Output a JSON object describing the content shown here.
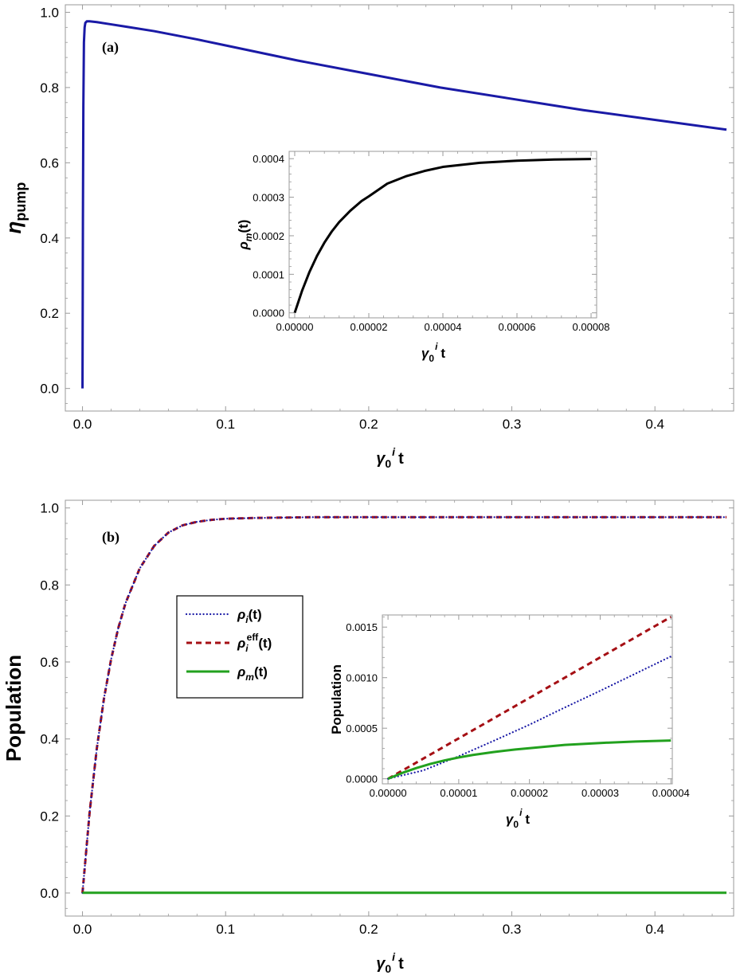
{
  "chart_data": [
    {
      "id": "main-a",
      "type": "line",
      "panel_label": "(a)",
      "xlabel": "γ₀ⁱ t",
      "ylabel": "η_pump",
      "xlim": [
        -0.012,
        0.455
      ],
      "ylim": [
        -0.06,
        1.02
      ],
      "xticks": [
        0.0,
        0.1,
        0.2,
        0.3,
        0.4
      ],
      "xtick_labels": [
        "0.0",
        "0.1",
        "0.2",
        "0.3",
        "0.4"
      ],
      "yticks": [
        0.0,
        0.2,
        0.4,
        0.6,
        0.8,
        1.0
      ],
      "ytick_labels": [
        "0.0",
        "0.2",
        "0.4",
        "0.6",
        "0.8",
        "1.0"
      ],
      "series": [
        {
          "name": "eta_pump",
          "color": "#1a1aa6",
          "style": "solid",
          "x": [
            0.0,
            0.0003,
            0.0006,
            0.001,
            0.0015,
            0.002,
            0.003,
            0.005,
            0.01,
            0.02,
            0.03,
            0.05,
            0.08,
            0.1,
            0.15,
            0.2,
            0.25,
            0.3,
            0.35,
            0.4,
            0.45
          ],
          "y": [
            0.0,
            0.45,
            0.75,
            0.92,
            0.96,
            0.972,
            0.976,
            0.976,
            0.974,
            0.968,
            0.962,
            0.95,
            0.928,
            0.912,
            0.872,
            0.836,
            0.8,
            0.77,
            0.74,
            0.714,
            0.688
          ]
        }
      ]
    },
    {
      "id": "inset-a",
      "type": "line",
      "xlabel": "γ₀ⁱ t",
      "ylabel": "ρm(t)",
      "xlim": [
        -1.5e-06,
        8.15e-05
      ],
      "ylim": [
        -1.3e-05,
        0.000419
      ],
      "xticks": [
        0.0,
        2e-05,
        4e-05,
        6e-05,
        8e-05
      ],
      "xtick_labels": [
        "0.00000",
        "0.00002",
        "0.00004",
        "0.00006",
        "0.00008"
      ],
      "yticks": [
        0.0,
        0.0001,
        0.0002,
        0.0003,
        0.0004
      ],
      "ytick_labels": [
        "0.0000",
        "0.0001",
        "0.0002",
        "0.0003",
        "0.0004"
      ],
      "series": [
        {
          "name": "rho_m",
          "color": "#000000",
          "style": "solid",
          "x": [
            0.0,
            2e-06,
            4e-06,
            6e-06,
            8e-06,
            1e-05,
            1.2e-05,
            1.5e-05,
            1.8e-05,
            2e-05,
            2.5e-05,
            3e-05,
            3.5e-05,
            4e-05,
            5e-05,
            6e-05,
            7e-05,
            8e-05
          ],
          "y": [
            0.0,
            5.77e-05,
            0.0001064,
            0.0001474,
            0.0001819,
            0.000211,
            0.0002355,
            0.0002649,
            0.0002897,
            0.0003022,
            0.0003353,
            0.0003542,
            0.0003681,
            0.0003786,
            0.0003892,
            0.0003948,
            0.0003978,
            0.0003992
          ]
        }
      ]
    },
    {
      "id": "main-b",
      "type": "line",
      "panel_label": "(b)",
      "xlabel": "γ₀ⁱ t",
      "ylabel": "Population",
      "xlim": [
        -0.012,
        0.455
      ],
      "ylim": [
        -0.06,
        1.02
      ],
      "xticks": [
        0.0,
        0.1,
        0.2,
        0.3,
        0.4
      ],
      "xtick_labels": [
        "0.0",
        "0.1",
        "0.2",
        "0.3",
        "0.4"
      ],
      "yticks": [
        0.0,
        0.2,
        0.4,
        0.6,
        0.8,
        1.0
      ],
      "ytick_labels": [
        "0.0",
        "0.2",
        "0.4",
        "0.6",
        "0.8",
        "1.0"
      ],
      "legend": {
        "position": "center-left",
        "entries": [
          {
            "label_base": "ρ",
            "label_sub": "i",
            "label_sup": "",
            "label_tail": "(t)",
            "color": "#1a1aa6",
            "style": "dotted"
          },
          {
            "label_base": "ρ",
            "label_sub": "i",
            "label_sup": "eff",
            "label_tail": "(t)",
            "color": "#a50f14",
            "style": "dashed"
          },
          {
            "label_base": "ρ",
            "label_sub": "m",
            "label_sup": "",
            "label_tail": "(t)",
            "color": "#22a11e",
            "style": "solid"
          }
        ]
      },
      "series": [
        {
          "name": "rho_i_eff",
          "color": "#a50f14",
          "style": "dashed",
          "x": [
            0.0,
            0.005,
            0.01,
            0.015,
            0.02,
            0.025,
            0.03,
            0.04,
            0.05,
            0.06,
            0.07,
            0.08,
            0.09,
            0.1,
            0.12,
            0.14,
            0.16,
            0.2,
            0.25,
            0.3,
            0.35,
            0.4,
            0.45
          ],
          "y": [
            0.0,
            0.21,
            0.375,
            0.505,
            0.607,
            0.688,
            0.752,
            0.843,
            0.901,
            0.936,
            0.955,
            0.964,
            0.969,
            0.972,
            0.974,
            0.975,
            0.976,
            0.976,
            0.976,
            0.976,
            0.976,
            0.976,
            0.976
          ]
        },
        {
          "name": "rho_i",
          "color": "#1a1aa6",
          "style": "dotted",
          "x": [
            0.0,
            0.005,
            0.01,
            0.015,
            0.02,
            0.025,
            0.03,
            0.04,
            0.05,
            0.06,
            0.07,
            0.08,
            0.09,
            0.1,
            0.12,
            0.14,
            0.16,
            0.2,
            0.25,
            0.3,
            0.35,
            0.4,
            0.45
          ],
          "y": [
            0.0,
            0.21,
            0.375,
            0.505,
            0.607,
            0.688,
            0.752,
            0.843,
            0.901,
            0.936,
            0.955,
            0.964,
            0.969,
            0.972,
            0.974,
            0.975,
            0.976,
            0.976,
            0.976,
            0.976,
            0.976,
            0.976,
            0.976
          ]
        },
        {
          "name": "rho_m",
          "color": "#22a11e",
          "style": "solid",
          "x": [
            0.0,
            0.45
          ],
          "y": [
            0.0004,
            0.0004
          ]
        }
      ]
    },
    {
      "id": "inset-b",
      "type": "line",
      "xlabel": "γ₀ⁱ t",
      "ylabel": "Population",
      "xlim": [
        -8e-07,
        4.02e-05
      ],
      "ylim": [
        -5e-05,
        0.00162
      ],
      "xticks": [
        0.0,
        1e-05,
        2e-05,
        3e-05,
        4e-05
      ],
      "xtick_labels": [
        "0.00000",
        "0.00001",
        "0.00002",
        "0.00003",
        "0.00004"
      ],
      "yticks": [
        0.0,
        0.0005,
        0.001,
        0.0015
      ],
      "ytick_labels": [
        "0.0000",
        "0.0005",
        "0.0010",
        "0.0015"
      ],
      "series": [
        {
          "name": "rho_i_eff",
          "color": "#a50f14",
          "style": "dashed",
          "x": [
            0.0,
            4e-05
          ],
          "y": [
            0.0,
            0.0016
          ]
        },
        {
          "name": "rho_i",
          "color": "#1a1aa6",
          "style": "dotted",
          "x": [
            0.0,
            5e-06,
            1e-05,
            1.5e-05,
            2e-05,
            2.5e-05,
            3e-05,
            3.5e-05,
            4e-05
          ],
          "y": [
            0.0,
            8.3e-05,
            0.000223,
            0.000377,
            0.000535,
            0.000705,
            0.00087,
            0.00104,
            0.00121
          ]
        },
        {
          "name": "rho_m",
          "color": "#22a11e",
          "style": "solid",
          "x": [
            0.0,
            2e-06,
            4e-06,
            6e-06,
            8e-06,
            1e-05,
            1.2e-05,
            1.5e-05,
            1.8e-05,
            2e-05,
            2.5e-05,
            3e-05,
            3.5e-05,
            4e-05
          ],
          "y": [
            0.0,
            5.77e-05,
            0.0001064,
            0.0001474,
            0.0001819,
            0.000211,
            0.0002355,
            0.0002649,
            0.0002897,
            0.0003022,
            0.0003353,
            0.0003542,
            0.0003681,
            0.0003786
          ]
        }
      ]
    }
  ]
}
